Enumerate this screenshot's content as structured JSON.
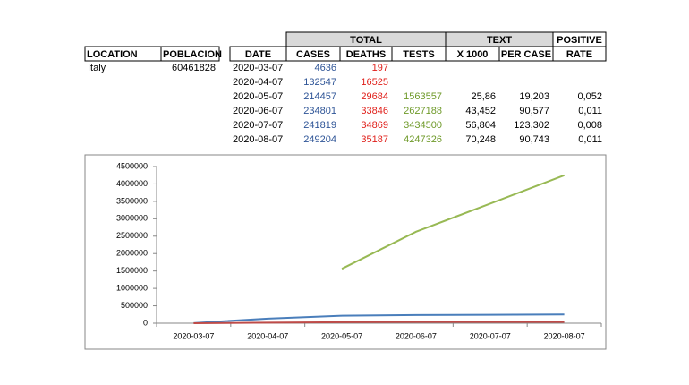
{
  "table": {
    "group_headers": [
      "TOTAL",
      "TEXT",
      "POSITIVE"
    ],
    "columns": [
      "LOCATION",
      "POBLACION",
      "DATE",
      "CASES",
      "DEATHS",
      "TESTS",
      "X 1000",
      "PER CASE",
      "RATE"
    ],
    "location": "Italy",
    "population": 60461828,
    "rows": [
      [
        "2020-03-07",
        4636,
        197,
        null,
        null,
        null,
        null
      ],
      [
        "2020-04-07",
        132547,
        16525,
        null,
        null,
        null,
        null
      ],
      [
        "2020-05-07",
        214457,
        29684,
        1563557,
        "25,86",
        "19,203",
        "0,052"
      ],
      [
        "2020-06-07",
        234801,
        33846,
        2627188,
        "43,452",
        "90,577",
        "0,011"
      ],
      [
        "2020-07-07",
        241819,
        34869,
        3434500,
        "56,804",
        "123,302",
        "0,008"
      ],
      [
        "2020-08-07",
        249204,
        35187,
        4247326,
        "70,248",
        "90,743",
        "0,011"
      ]
    ],
    "colors": [
      null,
      "#2f5597",
      "#e0201b",
      "#6f9a2a",
      null,
      null,
      null
    ]
  },
  "chart_data": {
    "type": "line",
    "categories": [
      "2020-03-07",
      "2020-04-07",
      "2020-05-07",
      "2020-06-07",
      "2020-07-07",
      "2020-08-07"
    ],
    "series": [
      {
        "color": "#4a7ebb",
        "values": [
          4636,
          132547,
          214457,
          234801,
          241819,
          249204
        ]
      },
      {
        "color": "#be4b48",
        "values": [
          197,
          16525,
          29684,
          33846,
          34869,
          35187
        ]
      },
      {
        "color": "#98b954",
        "values": [
          null,
          null,
          1563557,
          2627188,
          3434500,
          4247326
        ]
      }
    ],
    "ylim": [
      0,
      4500000
    ],
    "yticks": [
      0,
      500000,
      1000000,
      1500000,
      2000000,
      2500000,
      3000000,
      3500000,
      4000000,
      4500000
    ],
    "grid": false
  }
}
